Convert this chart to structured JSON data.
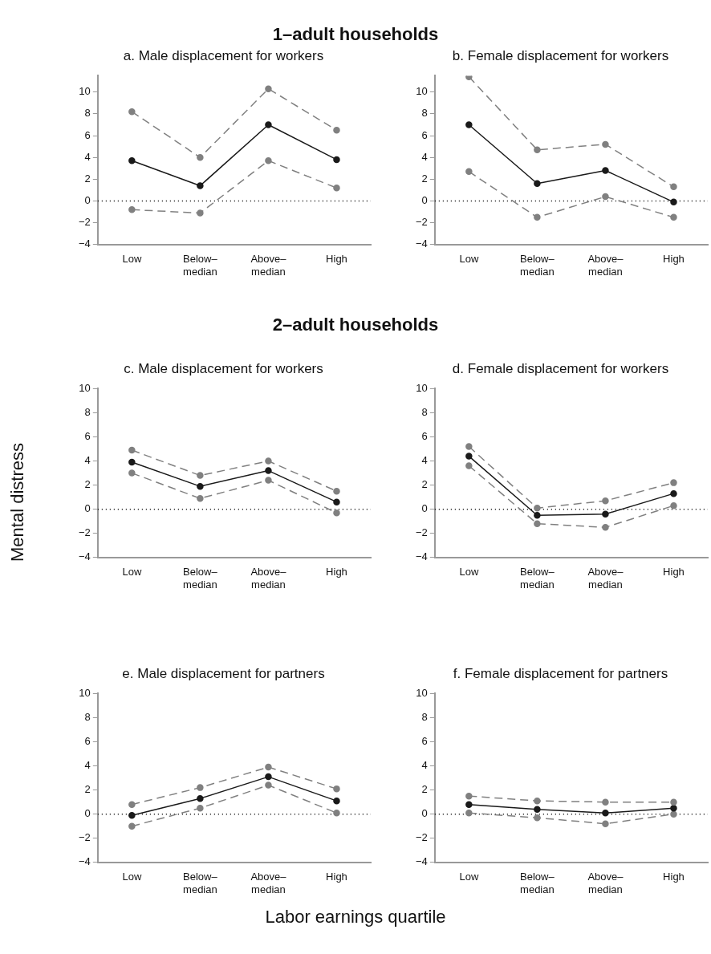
{
  "chart_data": [
    {
      "type": "line",
      "title": "a. Male displacement for workers",
      "annotations": [
        "1–adult households"
      ],
      "categories": [
        "Low",
        "Below–median",
        "Above–median",
        "High"
      ],
      "ylim": [
        -4,
        11.5
      ],
      "yticks": [
        -4,
        -2,
        0,
        2,
        4,
        6,
        8,
        10
      ],
      "marker": "circle",
      "legend": false,
      "grid": false,
      "ref_lines": [
        {
          "axis": "y",
          "value": 0,
          "color": "#000000",
          "line_style": "dotted"
        }
      ],
      "series": [
        {
          "color": "#808080",
          "line_style": "dashed",
          "values": [
            8.2,
            4.0,
            10.3,
            6.5
          ]
        },
        {
          "color": "#1a1a1a",
          "line_style": "solid",
          "values": [
            3.7,
            1.4,
            7.0,
            3.8
          ]
        },
        {
          "color": "#808080",
          "line_style": "dashed",
          "values": [
            -0.8,
            -1.1,
            3.7,
            1.2
          ]
        }
      ]
    },
    {
      "type": "line",
      "title": "b. Female displacement for workers",
      "categories": [
        "Low",
        "Below–median",
        "Above–median",
        "High"
      ],
      "ylim": [
        -4,
        11.5
      ],
      "yticks": [
        -4,
        -2,
        0,
        2,
        4,
        6,
        8,
        10
      ],
      "marker": "circle",
      "legend": false,
      "grid": false,
      "ref_lines": [
        {
          "axis": "y",
          "value": 0,
          "color": "#000000",
          "line_style": "dotted"
        }
      ],
      "series": [
        {
          "color": "#808080",
          "line_style": "dashed",
          "values": [
            11.4,
            4.7,
            5.2,
            1.3
          ]
        },
        {
          "color": "#1a1a1a",
          "line_style": "solid",
          "values": [
            7.0,
            1.6,
            2.8,
            -0.1
          ]
        },
        {
          "color": "#808080",
          "line_style": "dashed",
          "values": [
            2.7,
            -1.5,
            0.4,
            -1.5
          ]
        }
      ]
    },
    {
      "type": "line",
      "title": "c. Male displacement for workers",
      "annotations": [
        "2–adult households"
      ],
      "ylabel": "Mental distress",
      "categories": [
        "Low",
        "Below–median",
        "Above–median",
        "High"
      ],
      "ylim": [
        -4,
        10
      ],
      "yticks": [
        -4,
        -2,
        0,
        2,
        4,
        6,
        8,
        10
      ],
      "marker": "circle",
      "legend": false,
      "grid": false,
      "ref_lines": [
        {
          "axis": "y",
          "value": 0,
          "color": "#000000",
          "line_style": "dotted"
        }
      ],
      "series": [
        {
          "color": "#808080",
          "line_style": "dashed",
          "values": [
            4.9,
            2.8,
            4.0,
            1.5
          ]
        },
        {
          "color": "#1a1a1a",
          "line_style": "solid",
          "values": [
            3.9,
            1.9,
            3.2,
            0.6
          ]
        },
        {
          "color": "#808080",
          "line_style": "dashed",
          "values": [
            3.0,
            0.9,
            2.4,
            -0.3
          ]
        }
      ]
    },
    {
      "type": "line",
      "title": "d. Female displacement for workers",
      "categories": [
        "Low",
        "Below–median",
        "Above–median",
        "High"
      ],
      "ylim": [
        -4,
        10
      ],
      "yticks": [
        -4,
        -2,
        0,
        2,
        4,
        6,
        8,
        10
      ],
      "marker": "circle",
      "legend": false,
      "grid": false,
      "ref_lines": [
        {
          "axis": "y",
          "value": 0,
          "color": "#000000",
          "line_style": "dotted"
        }
      ],
      "series": [
        {
          "color": "#808080",
          "line_style": "dashed",
          "values": [
            5.2,
            0.1,
            0.7,
            2.2
          ]
        },
        {
          "color": "#1a1a1a",
          "line_style": "solid",
          "values": [
            4.4,
            -0.5,
            -0.4,
            1.3
          ]
        },
        {
          "color": "#808080",
          "line_style": "dashed",
          "values": [
            3.6,
            -1.2,
            -1.5,
            0.3
          ]
        }
      ]
    },
    {
      "type": "line",
      "title": "e. Male displacement for partners",
      "xlabel": "Labor earnings quartile",
      "categories": [
        "Low",
        "Below–median",
        "Above–median",
        "High"
      ],
      "ylim": [
        -4,
        10
      ],
      "yticks": [
        -4,
        -2,
        0,
        2,
        4,
        6,
        8,
        10
      ],
      "marker": "circle",
      "legend": false,
      "grid": false,
      "ref_lines": [
        {
          "axis": "y",
          "value": 0,
          "color": "#000000",
          "line_style": "dotted"
        }
      ],
      "series": [
        {
          "color": "#808080",
          "line_style": "dashed",
          "values": [
            0.8,
            2.2,
            3.9,
            2.1
          ]
        },
        {
          "color": "#1a1a1a",
          "line_style": "solid",
          "values": [
            -0.1,
            1.3,
            3.1,
            1.1
          ]
        },
        {
          "color": "#808080",
          "line_style": "dashed",
          "values": [
            -1.0,
            0.5,
            2.4,
            0.1
          ]
        }
      ]
    },
    {
      "type": "line",
      "title": "f. Female displacement for partners",
      "categories": [
        "Low",
        "Below–median",
        "Above–median",
        "High"
      ],
      "ylim": [
        -4,
        10
      ],
      "yticks": [
        -4,
        -2,
        0,
        2,
        4,
        6,
        8,
        10
      ],
      "marker": "circle",
      "legend": false,
      "grid": false,
      "ref_lines": [
        {
          "axis": "y",
          "value": 0,
          "color": "#000000",
          "line_style": "dotted"
        }
      ],
      "series": [
        {
          "color": "#808080",
          "line_style": "dashed",
          "values": [
            1.5,
            1.1,
            1.0,
            1.0
          ]
        },
        {
          "color": "#1a1a1a",
          "line_style": "solid",
          "values": [
            0.8,
            0.4,
            0.1,
            0.5
          ]
        },
        {
          "color": "#808080",
          "line_style": "dashed",
          "values": [
            0.1,
            -0.3,
            -0.8,
            0.0
          ]
        }
      ]
    }
  ]
}
